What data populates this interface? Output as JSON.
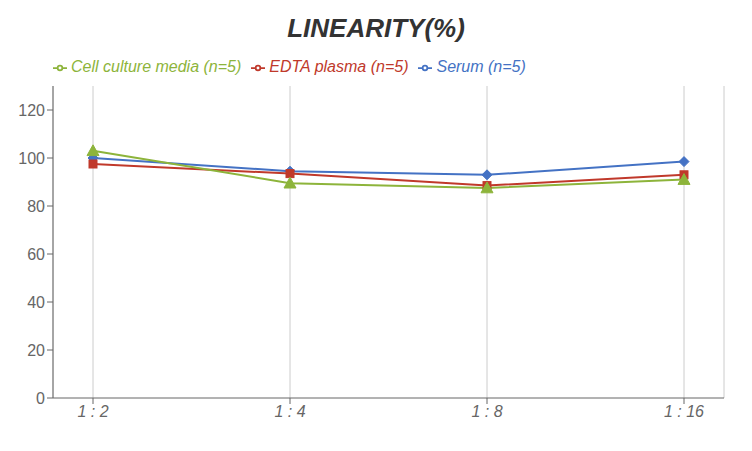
{
  "chart_data": {
    "type": "line",
    "title": "LINEARITY(%)",
    "categories": [
      "1 : 2",
      "1 : 4",
      "1 : 8",
      "1 : 16"
    ],
    "series": [
      {
        "name": "Serum (n=5)",
        "color": "#4472C4",
        "marker": "diamond",
        "values": [
          100.0,
          94.5,
          93.0,
          98.5
        ]
      },
      {
        "name": "EDTA plasma (n=5)",
        "color": "#C0392B",
        "marker": "square",
        "values": [
          97.5,
          93.5,
          88.5,
          93.0
        ]
      },
      {
        "name": "Cell culture media (n=5)",
        "color": "#8DB43B",
        "marker": "triangle",
        "values": [
          103.0,
          89.5,
          87.5,
          91.0
        ]
      }
    ],
    "ylim": [
      0,
      130
    ],
    "yticks": [
      0,
      20,
      40,
      60,
      80,
      100,
      120
    ],
    "grid": "x",
    "legend": "top"
  }
}
